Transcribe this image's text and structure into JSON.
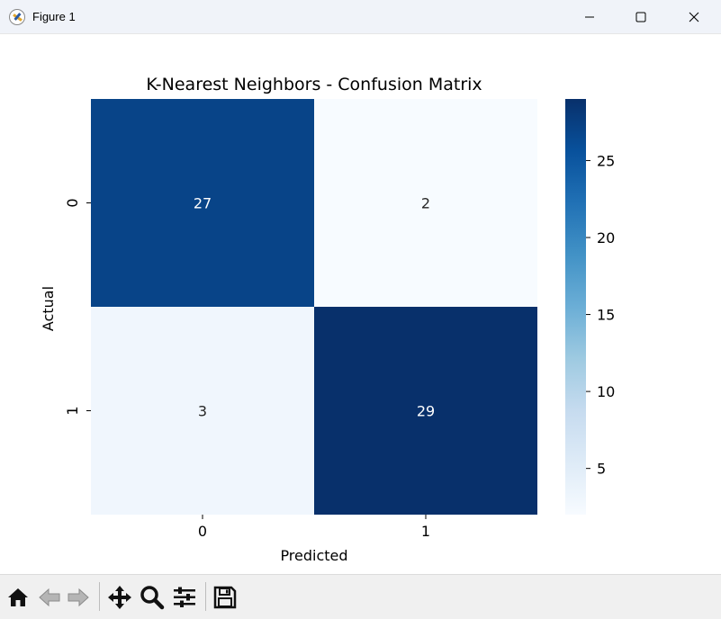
{
  "window": {
    "title": "Figure 1"
  },
  "icons": {
    "app": "matplotlib-icon",
    "minimize": "minimize-icon",
    "maximize": "maximize-icon",
    "close": "close-icon"
  },
  "toolbar": {
    "tools": [
      "home-icon",
      "back-arrow-icon",
      "forward-arrow-icon",
      "pan-icon",
      "zoom-icon",
      "configure-subplots-icon",
      "save-icon"
    ]
  },
  "chart_data": {
    "type": "heatmap",
    "title": "K-Nearest Neighbors - Confusion Matrix",
    "xlabel": "Predicted",
    "ylabel": "Actual",
    "x_categories": [
      "0",
      "1"
    ],
    "y_categories": [
      "0",
      "1"
    ],
    "values": [
      [
        27,
        2
      ],
      [
        3,
        29
      ]
    ],
    "annotations": [
      [
        "27",
        "2"
      ],
      [
        "3",
        "29"
      ]
    ],
    "colormap": "Blues",
    "colorbar": {
      "min": 2,
      "max": 29,
      "ticks": [
        5,
        10,
        15,
        20,
        25
      ],
      "tick_labels": [
        "5",
        "10",
        "15",
        "20",
        "25"
      ]
    },
    "colors": {
      "low": "#f7fbff",
      "high": "#08306b"
    }
  }
}
